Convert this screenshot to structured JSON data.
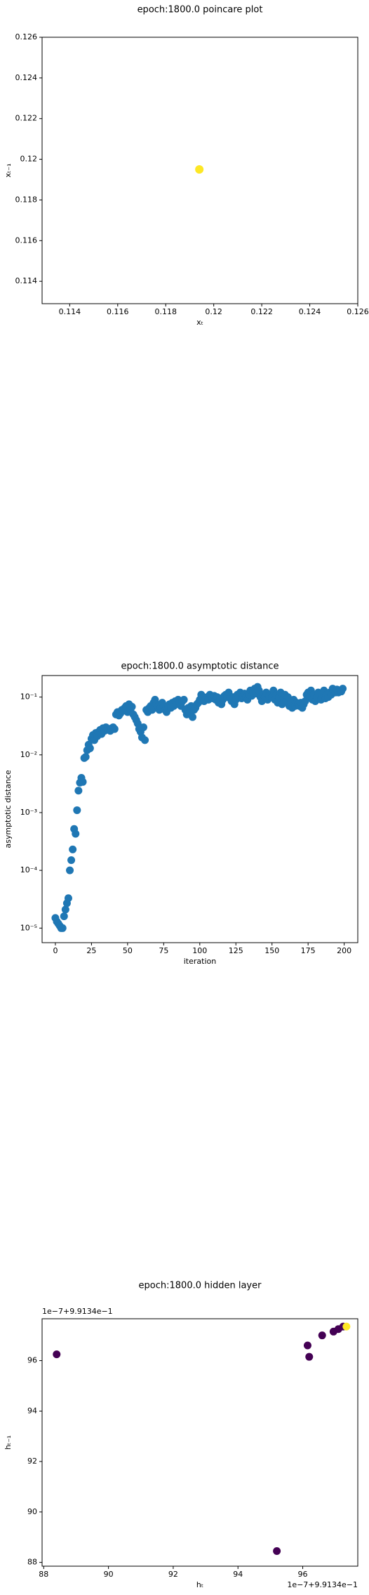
{
  "chart_data": [
    {
      "type": "scatter",
      "title": "epoch:1800.0 poincare plot",
      "xlabel": "xₜ",
      "ylabel": "xₜ₋₁",
      "x": [
        0.1194
      ],
      "y": [
        0.1195
      ],
      "color": "#fde725",
      "xlim": [
        0.11285,
        0.126
      ],
      "ylim": [
        0.1129,
        0.126
      ],
      "xticks": [
        0.114,
        0.116,
        0.118,
        0.12,
        0.122,
        0.124,
        0.126
      ],
      "yticks": [
        0.114,
        0.116,
        0.118,
        0.12,
        0.122,
        0.124,
        0.126
      ]
    },
    {
      "type": "scatter",
      "title": "epoch:1800.0 asymptotic distance",
      "xlabel": "iteration",
      "ylabel": "asymptotic distance",
      "color": "#1f77b4",
      "yscale": "log",
      "xlim": [
        -9.2,
        209.4
      ],
      "ylim": [
        5.6e-06,
        0.236
      ],
      "xticks": [
        0,
        25,
        50,
        75,
        100,
        125,
        150,
        175,
        200
      ],
      "yticks": [
        {
          "value": 1e-05,
          "label": "10⁻⁵"
        },
        {
          "value": 0.0001,
          "label": "10⁻⁴"
        },
        {
          "value": 0.001,
          "label": "10⁻³"
        },
        {
          "value": 0.01,
          "label": "10⁻²"
        },
        {
          "value": 0.1,
          "label": "10⁻¹"
        }
      ],
      "values": [
        1.5e-05,
        1.3e-05,
        1.2e-05,
        1.1e-05,
        1e-05,
        1e-05,
        1.6e-05,
        2.1e-05,
        2.7e-05,
        3.3e-05,
        0.0001,
        0.00015,
        0.00023,
        0.00052,
        0.00043,
        0.0011,
        0.0024,
        0.0033,
        0.004,
        0.0034,
        0.0088,
        0.0092,
        0.012,
        0.015,
        0.013,
        0.019,
        0.022,
        0.018,
        0.024,
        0.021,
        0.025,
        0.027,
        0.023,
        0.029,
        0.026,
        0.03,
        0.028,
        0.027,
        0.026,
        0.029,
        0.03,
        0.028,
        0.05,
        0.055,
        0.048,
        0.052,
        0.06,
        0.058,
        0.065,
        0.07,
        0.055,
        0.075,
        0.06,
        0.068,
        0.05,
        0.045,
        0.04,
        0.035,
        0.028,
        0.025,
        0.02,
        0.03,
        0.018,
        0.06,
        0.055,
        0.065,
        0.07,
        0.06,
        0.08,
        0.09,
        0.075,
        0.07,
        0.06,
        0.065,
        0.08,
        0.07,
        0.06,
        0.055,
        0.07,
        0.075,
        0.065,
        0.08,
        0.07,
        0.085,
        0.075,
        0.09,
        0.08,
        0.07,
        0.085,
        0.09,
        0.06,
        0.05,
        0.065,
        0.055,
        0.07,
        0.045,
        0.06,
        0.065,
        0.075,
        0.08,
        0.09,
        0.11,
        0.1,
        0.085,
        0.095,
        0.1,
        0.09,
        0.11,
        0.1,
        0.095,
        0.105,
        0.09,
        0.1,
        0.08,
        0.095,
        0.075,
        0.09,
        0.105,
        0.11,
        0.1,
        0.12,
        0.095,
        0.085,
        0.1,
        0.075,
        0.09,
        0.11,
        0.1,
        0.12,
        0.095,
        0.105,
        0.115,
        0.1,
        0.09,
        0.11,
        0.13,
        0.105,
        0.12,
        0.14,
        0.115,
        0.15,
        0.13,
        0.1,
        0.085,
        0.11,
        0.1,
        0.12,
        0.09,
        0.105,
        0.11,
        0.1,
        0.13,
        0.09,
        0.11,
        0.08,
        0.1,
        0.12,
        0.075,
        0.095,
        0.11,
        0.085,
        0.1,
        0.07,
        0.08,
        0.065,
        0.09,
        0.07,
        0.08,
        0.075,
        0.07,
        0.08,
        0.065,
        0.075,
        0.085,
        0.11,
        0.12,
        0.1,
        0.13,
        0.09,
        0.11,
        0.085,
        0.1,
        0.12,
        0.11,
        0.09,
        0.1,
        0.13,
        0.095,
        0.11,
        0.1,
        0.12,
        0.11,
        0.14,
        0.13,
        0.12,
        0.135,
        0.12,
        0.13,
        0.125,
        0.14
      ]
    },
    {
      "type": "scatter",
      "title": "epoch:1800.0 hidden layer",
      "xlabel": "hₜ",
      "ylabel": "hₜ₋₁",
      "x_offset": "1e−7+9.9134e−1",
      "y_offset": "1e−7+9.9134e−1",
      "x": [
        88.4,
        95.2,
        96.15,
        96.2,
        96.6,
        96.95,
        97.1,
        97.25,
        97.35
      ],
      "y": [
        96.25,
        88.45,
        96.6,
        96.15,
        97.0,
        97.15,
        97.25,
        97.35,
        97.35
      ],
      "colors": [
        "#440154",
        "#440154",
        "#440154",
        "#440154",
        "#440154",
        "#440154",
        "#440154",
        "#440154",
        "#fde725"
      ],
      "xlim": [
        87.95,
        97.7
      ],
      "ylim": [
        87.85,
        97.66
      ],
      "xticks": [
        88,
        90,
        92,
        94,
        96
      ],
      "yticks": [
        88,
        90,
        92,
        94,
        96
      ]
    }
  ]
}
